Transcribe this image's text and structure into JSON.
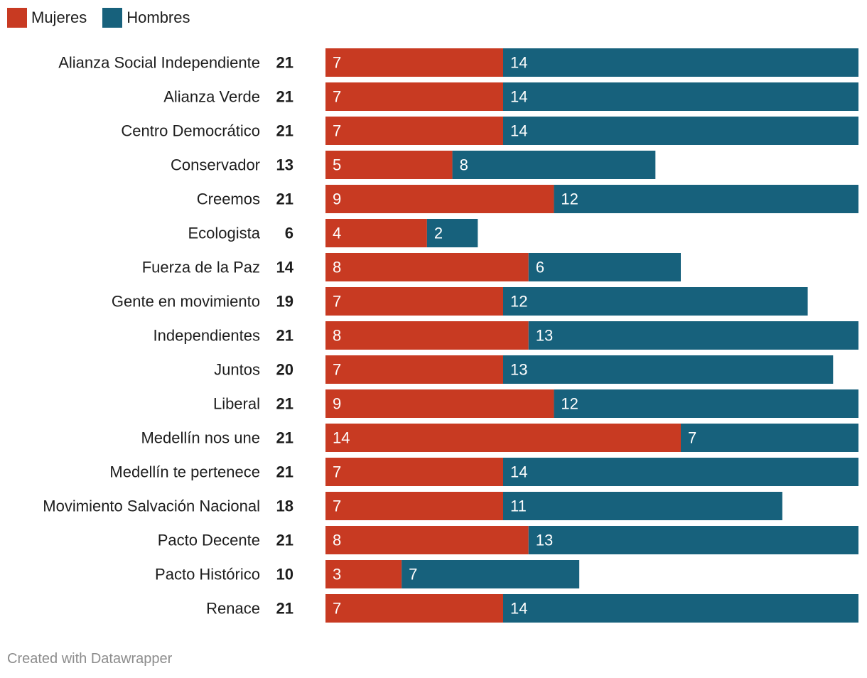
{
  "legend": {
    "mujeres": {
      "label": "Mujeres",
      "color": "#c83a22"
    },
    "hombres": {
      "label": "Hombres",
      "color": "#17617c"
    }
  },
  "chart_data": {
    "type": "bar",
    "orientation": "horizontal",
    "stacked": true,
    "categories": [
      "Alianza Social Independiente",
      "Alianza Verde",
      "Centro Democrático",
      "Conservador",
      "Creemos",
      "Ecologista",
      "Fuerza de la Paz",
      "Gente en movimiento",
      "Independientes",
      "Juntos",
      "Liberal",
      "Medellín nos une",
      "Medellín te pertenece",
      "Movimiento Salvación Nacional",
      "Pacto Decente",
      "Pacto Histórico",
      "Renace"
    ],
    "totals": [
      21,
      21,
      21,
      13,
      21,
      6,
      14,
      19,
      21,
      20,
      21,
      21,
      21,
      18,
      21,
      10,
      21
    ],
    "series": [
      {
        "name": "Mujeres",
        "color": "#c83a22",
        "values": [
          7,
          7,
          7,
          5,
          9,
          4,
          8,
          7,
          8,
          7,
          9,
          14,
          7,
          7,
          8,
          3,
          7
        ]
      },
      {
        "name": "Hombres",
        "color": "#17617c",
        "values": [
          14,
          14,
          14,
          8,
          12,
          2,
          6,
          12,
          13,
          13,
          12,
          7,
          14,
          11,
          13,
          7,
          14
        ]
      }
    ],
    "xlim": [
      0,
      21
    ],
    "title": "",
    "xlabel": "",
    "ylabel": ""
  },
  "footer": {
    "credit": "Created with Datawrapper"
  }
}
